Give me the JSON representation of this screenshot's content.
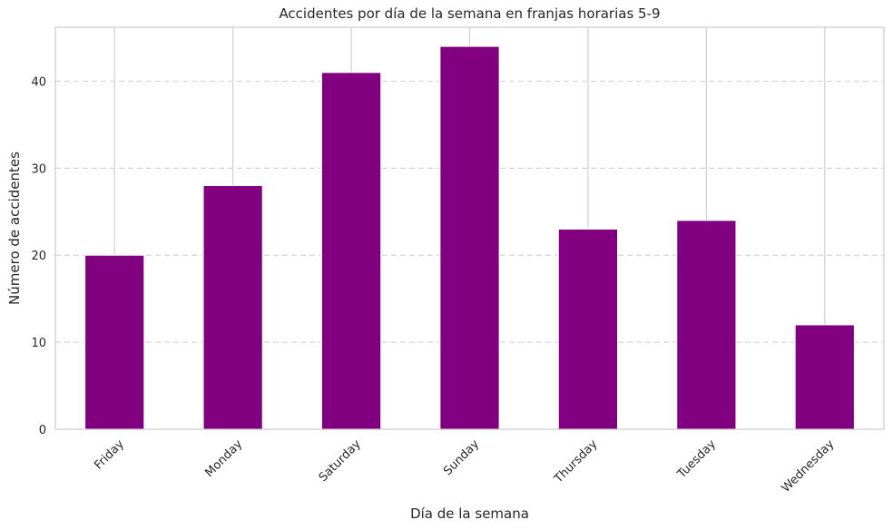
{
  "chart_data": {
    "type": "bar",
    "title": "Accidentes por día de la semana en franjas horarias 5-9",
    "xlabel": "Día de la semana",
    "ylabel": "Número de accidentes",
    "categories": [
      "Friday",
      "Monday",
      "Saturday",
      "Sunday",
      "Thursday",
      "Tuesday",
      "Wednesday"
    ],
    "values": [
      20,
      28,
      41,
      44,
      23,
      24,
      12
    ],
    "ylim": [
      0,
      46.2
    ],
    "yticks": [
      0,
      10,
      20,
      30,
      40
    ],
    "bar_color": "#800080",
    "grid": "y-dashed, x-solid",
    "legend": "none"
  }
}
